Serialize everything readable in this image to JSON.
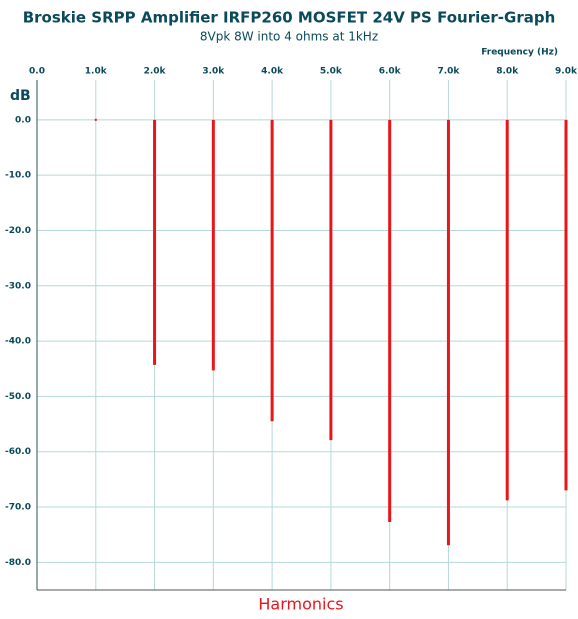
{
  "chart_data": {
    "type": "bar",
    "title": "Broskie SRPP Amplifier IRFP260 MOSFET 24V PS Fourier-Graph",
    "subtitle": "8Vpk 8W into 4 ohms at 1kHz",
    "x_label": "Frequency   (Hz)",
    "y_label": "dB",
    "bottom_label": "Harmonics",
    "x": [
      1000,
      2000,
      3000,
      4000,
      5000,
      6000,
      7000,
      8000,
      9000
    ],
    "values": [
      0,
      -44.3,
      -45.3,
      -54.5,
      -57.9,
      -72.7,
      -76.9,
      -68.8,
      -67.0
    ],
    "color": "#e8161b",
    "xlim": [
      0,
      9000
    ],
    "xticks": [
      {
        "value": 0,
        "label": "0.0"
      },
      {
        "value": 1000,
        "label": "1.0k"
      },
      {
        "value": 2000,
        "label": "2.0k"
      },
      {
        "value": 3000,
        "label": "3.0k"
      },
      {
        "value": 4000,
        "label": "4.0k"
      },
      {
        "value": 5000,
        "label": "5.0k"
      },
      {
        "value": 6000,
        "label": "6.0k"
      },
      {
        "value": 7000,
        "label": "7.0k"
      },
      {
        "value": 8000,
        "label": "8.0k"
      },
      {
        "value": 9000,
        "label": "9.0k"
      }
    ],
    "ylim": [
      -85,
      7.2
    ],
    "yticks": [
      {
        "value": 0,
        "label": "0.0"
      },
      {
        "value": -10,
        "label": "-10.0"
      },
      {
        "value": -20,
        "label": "-20.0"
      },
      {
        "value": -30,
        "label": "-30.0"
      },
      {
        "value": -40,
        "label": "-40.0"
      },
      {
        "value": -50,
        "label": "-50.0"
      },
      {
        "value": -60,
        "label": "-60.0"
      },
      {
        "value": -70,
        "label": "-70.0"
      },
      {
        "value": -80,
        "label": "-80.0"
      }
    ],
    "grid": true
  }
}
